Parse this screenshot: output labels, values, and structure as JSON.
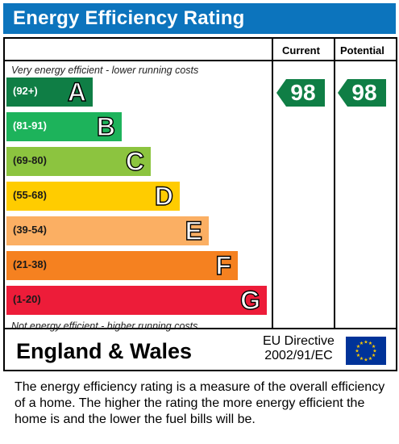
{
  "title": "Energy Efficiency Rating",
  "columns": {
    "current": "Current",
    "potential": "Potential"
  },
  "top_caption": "Very energy efficient - lower running costs",
  "bottom_caption": "Not energy efficient - higher running costs",
  "bands": [
    {
      "range": "(92+)",
      "letter": "A",
      "color": "#0f7e45",
      "range_color": "#ffffff"
    },
    {
      "range": "(81-91)",
      "letter": "B",
      "color": "#1db35b",
      "range_color": "#ffffff"
    },
    {
      "range": "(69-80)",
      "letter": "C",
      "color": "#8cc43f",
      "range_color": "#1a1a1a"
    },
    {
      "range": "(55-68)",
      "letter": "D",
      "color": "#ffcc00",
      "range_color": "#1a1a1a"
    },
    {
      "range": "(39-54)",
      "letter": "E",
      "color": "#fbaf63",
      "range_color": "#1a1a1a"
    },
    {
      "range": "(21-38)",
      "letter": "F",
      "color": "#f58120",
      "range_color": "#1a1a1a"
    },
    {
      "range": "(1-20)",
      "letter": "G",
      "color": "#ed1c39",
      "range_color": "#1a1a1a"
    }
  ],
  "current_rating": {
    "value": "98",
    "color": "#0f7e45"
  },
  "potential_rating": {
    "value": "98",
    "color": "#0f7e45"
  },
  "region": "England & Wales",
  "directive": {
    "line1": "EU Directive",
    "line2": "2002/91/EC"
  },
  "eu_flag": {
    "icon": "eu-flag-icon",
    "background": "#003399",
    "star_color": "#ffcc00"
  },
  "description": "The energy efficiency rating is a measure of the overall efficiency of a home.  The higher the rating the more energy efficient the home is and the lower the fuel bills will be."
}
